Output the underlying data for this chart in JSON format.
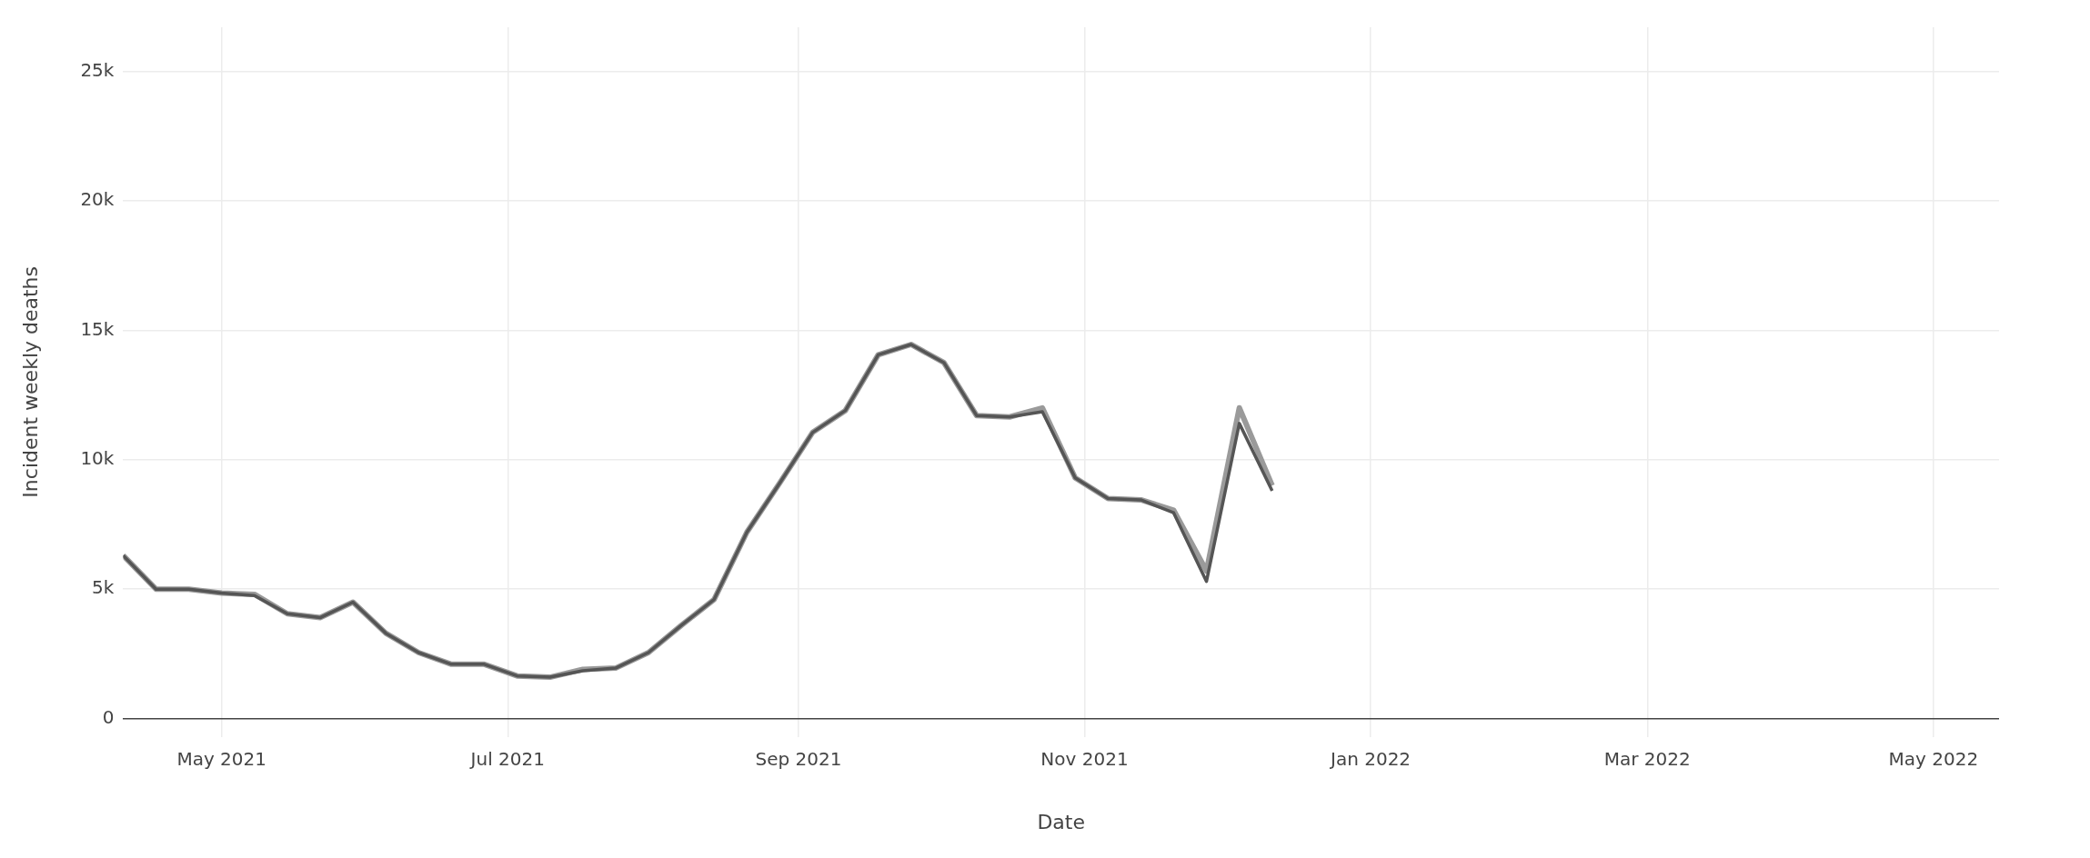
{
  "chart_data": {
    "type": "line",
    "xlabel": "Date",
    "ylabel": "Incident weekly deaths",
    "x": [
      "2021-04-10",
      "2021-04-17",
      "2021-04-24",
      "2021-05-01",
      "2021-05-08",
      "2021-05-15",
      "2021-05-22",
      "2021-05-29",
      "2021-06-05",
      "2021-06-12",
      "2021-06-19",
      "2021-06-26",
      "2021-07-03",
      "2021-07-10",
      "2021-07-17",
      "2021-07-24",
      "2021-07-31",
      "2021-08-07",
      "2021-08-14",
      "2021-08-21",
      "2021-08-28",
      "2021-09-04",
      "2021-09-11",
      "2021-09-18",
      "2021-09-25",
      "2021-10-02",
      "2021-10-09",
      "2021-10-16",
      "2021-10-23",
      "2021-10-30",
      "2021-11-06",
      "2021-11-13",
      "2021-11-20",
      "2021-11-27",
      "2021-12-04",
      "2021-12-11"
    ],
    "series": [
      {
        "color": "#9a9a9a",
        "values": [
          6300,
          5000,
          5000,
          4850,
          4800,
          4050,
          3900,
          4500,
          3300,
          2550,
          2100,
          2100,
          1650,
          1600,
          1900,
          1950,
          2550,
          3600,
          4600,
          7200,
          9100,
          11050,
          11900,
          14050,
          14450,
          13750,
          11700,
          11650,
          12000,
          9300,
          8500,
          8450,
          8050,
          5700,
          12000,
          9000
        ]
      },
      {
        "color": "#555555",
        "values": [
          6300,
          5000,
          5000,
          4850,
          4750,
          4050,
          3900,
          4500,
          3300,
          2550,
          2100,
          2100,
          1650,
          1600,
          1850,
          1950,
          2550,
          3600,
          4600,
          7200,
          9100,
          11050,
          11900,
          14050,
          14450,
          13750,
          11700,
          11650,
          11850,
          9300,
          8500,
          8450,
          7950,
          5300,
          11400,
          8800
        ]
      }
    ],
    "xlim": [
      "2021-04-10",
      "2022-05-15"
    ],
    "xticks": [
      {
        "value": "2021-05-01",
        "label": "May 2021"
      },
      {
        "value": "2021-07-01",
        "label": "Jul 2021"
      },
      {
        "value": "2021-09-01",
        "label": "Sep 2021"
      },
      {
        "value": "2021-11-01",
        "label": "Nov 2021"
      },
      {
        "value": "2022-01-01",
        "label": "Jan 2022"
      },
      {
        "value": "2022-03-01",
        "label": "Mar 2022"
      },
      {
        "value": "2022-05-01",
        "label": "May 2022"
      }
    ],
    "ylim": [
      -700,
      26700
    ],
    "yticks": [
      0,
      {
        "value": 5000,
        "label": "5k"
      },
      {
        "value": 10000,
        "label": "10k"
      },
      {
        "value": 15000,
        "label": "15k"
      },
      {
        "value": 20000,
        "label": "20k"
      },
      {
        "value": 25000,
        "label": "25k"
      }
    ],
    "grid": true,
    "legend": false,
    "marker": "none",
    "line_style": "solid"
  }
}
